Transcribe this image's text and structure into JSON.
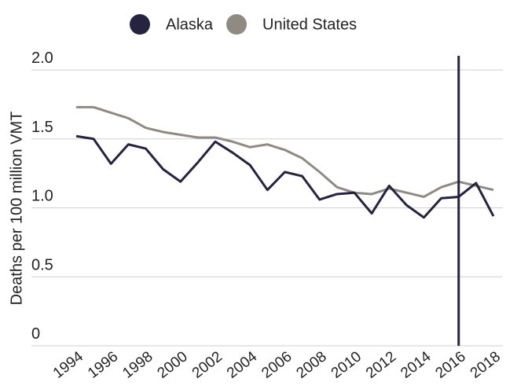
{
  "chart_data": {
    "type": "line",
    "ylabel": "Deaths per 100 million VMT",
    "x": [
      1994,
      1995,
      1996,
      1997,
      1998,
      1999,
      2000,
      2001,
      2002,
      2003,
      2004,
      2005,
      2006,
      2007,
      2008,
      2009,
      2010,
      2011,
      2012,
      2013,
      2014,
      2015,
      2016,
      2017,
      2018
    ],
    "series": [
      {
        "name": "Alaska",
        "color": "#25233f",
        "values": [
          1.52,
          1.5,
          1.32,
          1.46,
          1.43,
          1.28,
          1.19,
          1.33,
          1.48,
          1.4,
          1.31,
          1.13,
          1.26,
          1.23,
          1.06,
          1.1,
          1.11,
          0.96,
          1.16,
          1.02,
          0.93,
          1.07,
          1.08,
          1.18,
          0.94
        ]
      },
      {
        "name": "United States",
        "color": "#8f8b83",
        "values": [
          1.73,
          1.73,
          1.69,
          1.65,
          1.58,
          1.55,
          1.53,
          1.51,
          1.51,
          1.48,
          1.44,
          1.46,
          1.42,
          1.36,
          1.26,
          1.15,
          1.11,
          1.1,
          1.14,
          1.11,
          1.08,
          1.15,
          1.19,
          1.16,
          1.13
        ]
      }
    ],
    "xlim": [
      1994,
      2018
    ],
    "xticks": [
      1994,
      1996,
      1998,
      2000,
      2002,
      2004,
      2006,
      2008,
      2010,
      2012,
      2014,
      2016,
      2018
    ],
    "ylim": [
      0,
      2
    ],
    "yticks": [
      0,
      0.5,
      {
        "value": 1,
        "label": "1.0"
      },
      1.5,
      {
        "value": 2,
        "label": "2.0"
      }
    ],
    "grid": true,
    "reference_line": {
      "x": 2016,
      "color": "#25233f"
    }
  }
}
